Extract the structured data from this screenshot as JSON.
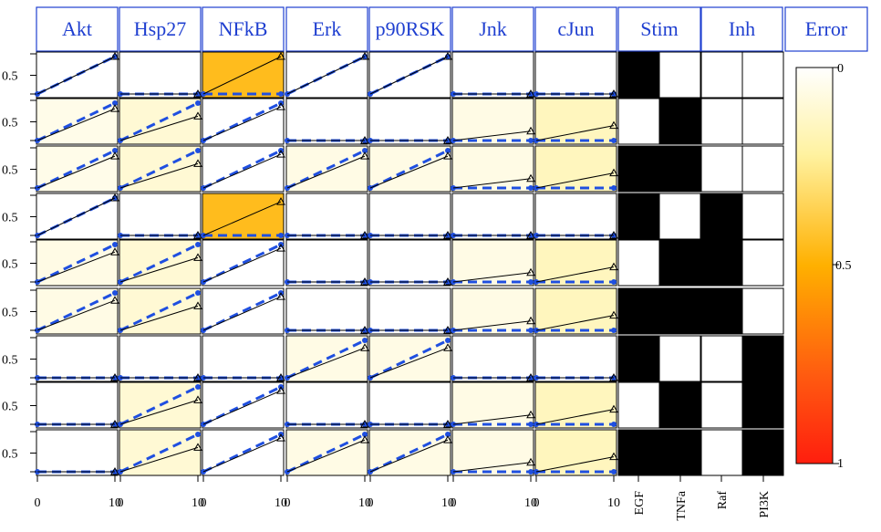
{
  "chart_data": {
    "type": "heatmap",
    "columns": [
      "Akt",
      "Hsp27",
      "NFkB",
      "Erk",
      "p90RSK",
      "Jnk",
      "cJun"
    ],
    "stim_header": "Stim",
    "inh_header": "Inh",
    "error_header": "Error",
    "stimuli": [
      "EGF",
      "TNFa"
    ],
    "inhibitors": [
      "Raf",
      "PI3K"
    ],
    "y_tick_label": "0.5",
    "x_ticks": [
      "0",
      "10"
    ],
    "colorbar_ticks": [
      "0",
      "0.5",
      "1"
    ],
    "colorbar_range": [
      0,
      1
    ],
    "time": [
      0,
      10
    ],
    "stim_matrix": [
      [
        1,
        0
      ],
      [
        0,
        1
      ],
      [
        1,
        1
      ],
      [
        1,
        0
      ],
      [
        0,
        1
      ],
      [
        1,
        1
      ],
      [
        1,
        0
      ],
      [
        0,
        1
      ],
      [
        1,
        1
      ]
    ],
    "inh_matrix": [
      [
        0,
        0
      ],
      [
        0,
        0
      ],
      [
        0,
        0
      ],
      [
        1,
        0
      ],
      [
        1,
        0
      ],
      [
        1,
        0
      ],
      [
        0,
        1
      ],
      [
        0,
        1
      ],
      [
        0,
        1
      ]
    ],
    "data_end": [
      [
        1.0,
        0.0,
        1.0,
        1.0,
        1.0,
        0.0,
        0.0
      ],
      [
        0.85,
        0.65,
        0.9,
        0.0,
        0.0,
        0.25,
        0.4
      ],
      [
        0.85,
        0.65,
        0.9,
        0.85,
        0.85,
        0.25,
        0.4
      ],
      [
        1.0,
        0.0,
        0.9,
        0.0,
        0.0,
        0.0,
        0.0
      ],
      [
        0.8,
        0.65,
        0.9,
        0.0,
        0.0,
        0.25,
        0.4
      ],
      [
        0.8,
        0.65,
        0.9,
        0.0,
        0.0,
        0.25,
        0.4
      ],
      [
        0.0,
        0.0,
        0.0,
        0.8,
        0.8,
        0.0,
        0.0
      ],
      [
        0.0,
        0.65,
        0.9,
        0.0,
        0.0,
        0.25,
        0.4
      ],
      [
        0.0,
        0.65,
        0.9,
        0.85,
        0.85,
        0.25,
        0.4
      ]
    ],
    "sim_end": [
      [
        1,
        0,
        0,
        1,
        1,
        0,
        0
      ],
      [
        1,
        1,
        1,
        0,
        0,
        0,
        0
      ],
      [
        1,
        1,
        1,
        1,
        1,
        0,
        0
      ],
      [
        1,
        0,
        0,
        0,
        0,
        0,
        0
      ],
      [
        1,
        1,
        1,
        0,
        0,
        0,
        0
      ],
      [
        1,
        1,
        1,
        0,
        0,
        0,
        0
      ],
      [
        0,
        0,
        0,
        1,
        1,
        0,
        0
      ],
      [
        0,
        1,
        1,
        0,
        0,
        0,
        0
      ],
      [
        0,
        1,
        1,
        1,
        1,
        0,
        0
      ]
    ],
    "error": [
      [
        0.0,
        0.0,
        0.45,
        0.0,
        0.0,
        0.0,
        0.0
      ],
      [
        0.05,
        0.1,
        0.0,
        0.0,
        0.0,
        0.06,
        0.15
      ],
      [
        0.05,
        0.1,
        0.0,
        0.06,
        0.06,
        0.06,
        0.15
      ],
      [
        0.0,
        0.0,
        0.45,
        0.0,
        0.0,
        0.0,
        0.0
      ],
      [
        0.06,
        0.1,
        0.0,
        0.0,
        0.0,
        0.06,
        0.15
      ],
      [
        0.06,
        0.1,
        0.0,
        0.0,
        0.0,
        0.06,
        0.15
      ],
      [
        0.0,
        0.0,
        0.0,
        0.06,
        0.06,
        0.0,
        0.0
      ],
      [
        0.0,
        0.1,
        0.0,
        0.0,
        0.0,
        0.06,
        0.15
      ],
      [
        0.0,
        0.1,
        0.0,
        0.06,
        0.06,
        0.06,
        0.15
      ]
    ],
    "colors": {
      "header_border": "#1f3fd0",
      "header_text": "#1f3fd0",
      "sim_line": "#1f4fe0",
      "data_line": "#000000",
      "stim_on": "#000000",
      "stim_off": "#ffffff"
    }
  }
}
